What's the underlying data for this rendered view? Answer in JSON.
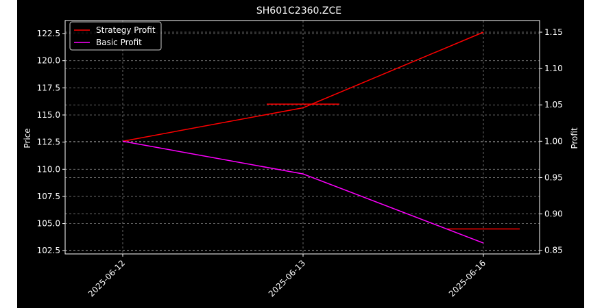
{
  "chart_data": {
    "type": "line",
    "title": "SH601C2360.ZCE",
    "xlabel": "",
    "ylabel": "Price",
    "y2label": "Profit",
    "categories": [
      "2025-06-12",
      "2025-06-13",
      "2025-06-16"
    ],
    "price_series": {
      "name": "",
      "color": "#ff0000",
      "markers": [
        {
          "x": "2025-06-13",
          "y": 116.0
        },
        {
          "x": "2025-06-16",
          "y": 104.5
        }
      ]
    },
    "series": [
      {
        "name": "Strategy Profit",
        "color": "#ff0000",
        "values": [
          1.0,
          1.046,
          1.15
        ]
      },
      {
        "name": "Basic Profit",
        "color": "#ff00ff",
        "values": [
          1.0,
          0.955,
          0.86
        ]
      }
    ],
    "ylim": [
      102.2,
      123.7
    ],
    "y2lim": [
      0.845,
      1.166
    ],
    "yticks": [
      "102.5",
      "105.0",
      "107.5",
      "110.0",
      "112.5",
      "115.0",
      "117.5",
      "120.0",
      "122.5"
    ],
    "y2ticks": [
      "0.85",
      "0.90",
      "0.95",
      "1.00",
      "1.05",
      "1.10",
      "1.15"
    ],
    "grid": true,
    "legend_position": "top-left",
    "colors": {
      "background": "#000000",
      "foreground": "#ffffff",
      "grid": "#808080"
    }
  }
}
